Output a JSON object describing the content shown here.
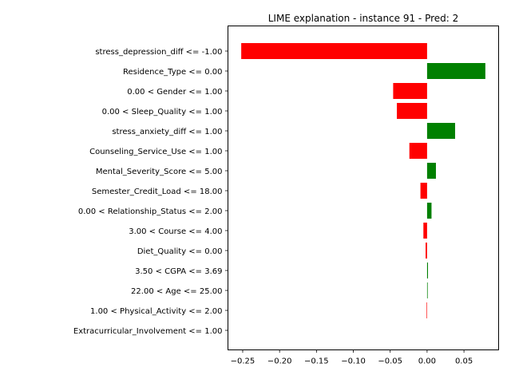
{
  "chart_data": {
    "type": "bar",
    "orientation": "horizontal",
    "title": "LIME explanation - instance 91 - Pred: 2",
    "xlabel": "",
    "ylabel": "",
    "xlim": [
      -0.27,
      0.097
    ],
    "x_ticks": [
      -0.25,
      -0.2,
      -0.15,
      -0.1,
      -0.05,
      0.0,
      0.05
    ],
    "x_tick_labels": [
      "−0.25",
      "−0.20",
      "−0.15",
      "−0.10",
      "−0.05",
      "0.00",
      "0.05"
    ],
    "grid": false,
    "legend": "none",
    "positive_color": "#008000",
    "negative_color": "#ff0000",
    "categories": [
      "stress_depression_diff <= -1.00",
      "Residence_Type <= 0.00",
      "0.00 < Gender <= 1.00",
      "0.00 < Sleep_Quality <= 1.00",
      "stress_anxiety_diff <= 1.00",
      "Counseling_Service_Use <= 1.00",
      "Mental_Severity_Score <= 5.00",
      "Semester_Credit_Load <= 18.00",
      "0.00 < Relationship_Status <= 2.00",
      "3.00 < Course <= 4.00",
      "Diet_Quality <= 0.00",
      "3.50 < CGPA <= 3.69",
      "22.00 < Age <= 25.00",
      "1.00 < Physical_Activity <= 2.00",
      "Extracurricular_Involvement <= 1.00"
    ],
    "values": [
      -0.252,
      0.079,
      -0.046,
      -0.041,
      0.038,
      -0.024,
      0.012,
      -0.009,
      0.006,
      -0.005,
      -0.002,
      0.0012,
      0.0008,
      -0.0007,
      0.0
    ]
  }
}
